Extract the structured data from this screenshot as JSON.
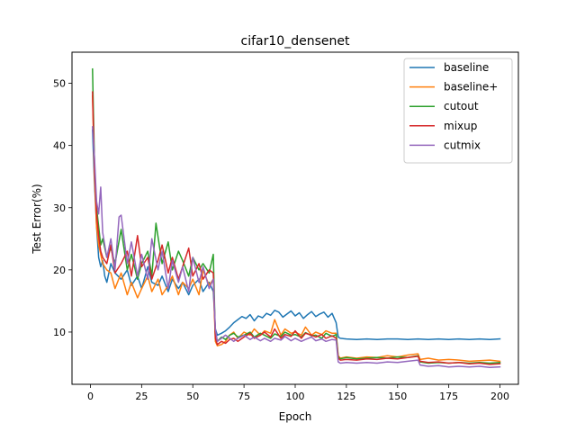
{
  "chart_data": {
    "type": "line",
    "title": "cifar10_densenet",
    "xlabel": "Epoch",
    "ylabel": "Test Error(%)",
    "xlim": [
      -9,
      209
    ],
    "ylim": [
      1.6,
      55.0
    ],
    "xticks": [
      0,
      25,
      50,
      75,
      100,
      125,
      150,
      175,
      200
    ],
    "yticks": [
      10,
      20,
      30,
      40,
      50
    ],
    "grid": false,
    "legend_position": "top-right",
    "series": [
      {
        "name": "baseline",
        "color": "#1f77b4",
        "x": [
          1,
          2,
          3,
          4,
          5,
          6,
          7,
          8,
          10,
          12,
          15,
          18,
          20,
          23,
          25,
          28,
          30,
          33,
          35,
          38,
          40,
          43,
          45,
          48,
          50,
          53,
          55,
          58,
          60,
          61,
          62,
          64,
          66,
          68,
          70,
          72,
          74,
          76,
          78,
          80,
          82,
          84,
          86,
          88,
          90,
          92,
          94,
          96,
          98,
          100,
          102,
          104,
          106,
          108,
          110,
          112,
          114,
          116,
          118,
          120,
          121,
          122,
          125,
          130,
          135,
          140,
          145,
          150,
          155,
          160,
          165,
          170,
          175,
          180,
          185,
          190,
          195,
          200
        ],
        "y": [
          42.5,
          34.0,
          27.0,
          22.0,
          20.5,
          21.5,
          19.0,
          18.0,
          21.0,
          19.5,
          18.5,
          20.0,
          17.5,
          19.0,
          17.0,
          20.5,
          18.0,
          17.5,
          19.0,
          16.5,
          18.5,
          17.0,
          18.0,
          16.0,
          17.5,
          18.5,
          16.5,
          18.0,
          16.5,
          10.5,
          9.5,
          9.8,
          10.2,
          10.8,
          11.5,
          12.0,
          12.5,
          12.2,
          12.8,
          11.8,
          12.6,
          12.3,
          13.0,
          12.7,
          13.5,
          13.2,
          12.4,
          12.9,
          13.4,
          12.6,
          13.1,
          12.2,
          12.8,
          13.3,
          12.5,
          12.9,
          13.2,
          12.4,
          13.0,
          11.5,
          9.2,
          9.0,
          8.9,
          8.8,
          8.9,
          8.8,
          8.9,
          8.9,
          8.8,
          8.9,
          8.8,
          8.9,
          8.8,
          8.9,
          8.8,
          8.9,
          8.8,
          8.9
        ]
      },
      {
        "name": "baseline+",
        "color": "#ff7f0e",
        "x": [
          1,
          2,
          3,
          4,
          5,
          6,
          8,
          10,
          12,
          15,
          18,
          20,
          23,
          25,
          28,
          30,
          33,
          35,
          38,
          40,
          43,
          45,
          48,
          50,
          53,
          55,
          58,
          60,
          61,
          62,
          64,
          66,
          68,
          70,
          72,
          75,
          78,
          80,
          83,
          85,
          88,
          90,
          93,
          95,
          98,
          100,
          103,
          105,
          108,
          110,
          113,
          115,
          118,
          120,
          121,
          122,
          125,
          130,
          135,
          140,
          145,
          150,
          155,
          160,
          161,
          165,
          170,
          175,
          180,
          185,
          190,
          195,
          200
        ],
        "y": [
          48.0,
          35.0,
          27.0,
          24.0,
          22.5,
          21.0,
          20.0,
          19.5,
          17.0,
          19.5,
          16.0,
          18.0,
          15.5,
          17.0,
          19.0,
          16.5,
          18.5,
          16.0,
          17.5,
          19.0,
          16.0,
          18.0,
          17.0,
          18.5,
          16.0,
          20.0,
          17.5,
          18.5,
          8.5,
          7.8,
          8.0,
          8.5,
          9.5,
          10.0,
          9.0,
          10.0,
          9.5,
          10.5,
          9.5,
          10.2,
          9.8,
          12.0,
          9.5,
          10.5,
          9.8,
          10.0,
          9.5,
          10.8,
          9.5,
          10.0,
          9.6,
          10.2,
          9.8,
          9.8,
          6.2,
          5.8,
          6.0,
          5.8,
          6.0,
          5.9,
          6.2,
          6.0,
          6.3,
          6.5,
          5.6,
          5.8,
          5.5,
          5.6,
          5.5,
          5.3,
          5.4,
          5.5,
          5.3
        ]
      },
      {
        "name": "cutout",
        "color": "#2ca02c",
        "x": [
          1,
          2,
          3,
          4,
          5,
          6,
          8,
          10,
          12,
          15,
          18,
          20,
          23,
          25,
          28,
          30,
          32,
          35,
          38,
          40,
          43,
          45,
          48,
          50,
          53,
          55,
          58,
          60,
          61,
          62,
          64,
          66,
          68,
          70,
          72,
          75,
          78,
          80,
          83,
          85,
          88,
          90,
          93,
          95,
          98,
          100,
          103,
          105,
          108,
          110,
          113,
          115,
          118,
          120,
          121,
          122,
          125,
          130,
          135,
          140,
          145,
          150,
          155,
          160,
          161,
          165,
          170,
          175,
          180,
          185,
          190,
          195,
          200
        ],
        "y": [
          52.3,
          37.0,
          30.0,
          27.0,
          24.0,
          25.0,
          22.0,
          23.5,
          21.0,
          26.5,
          20.0,
          22.5,
          18.5,
          21.0,
          23.0,
          19.0,
          27.5,
          21.0,
          24.5,
          20.0,
          23.0,
          21.5,
          19.0,
          22.0,
          20.0,
          21.0,
          19.5,
          22.5,
          9.0,
          8.5,
          9.2,
          8.8,
          9.5,
          9.8,
          9.2,
          9.5,
          10.0,
          9.2,
          9.8,
          9.5,
          9.0,
          9.7,
          9.3,
          10.0,
          9.5,
          9.6,
          9.2,
          9.9,
          9.4,
          9.5,
          9.0,
          9.8,
          9.3,
          9.6,
          6.0,
          5.7,
          5.9,
          5.7,
          5.8,
          5.9,
          5.8,
          6.0,
          5.9,
          6.2,
          5.2,
          5.0,
          5.1,
          5.0,
          5.1,
          5.0,
          5.1,
          5.0,
          5.1
        ]
      },
      {
        "name": "mixup",
        "color": "#d62728",
        "x": [
          1,
          2,
          3,
          4,
          5,
          6,
          8,
          10,
          12,
          15,
          18,
          20,
          23,
          25,
          28,
          30,
          33,
          35,
          38,
          40,
          43,
          45,
          48,
          50,
          53,
          55,
          58,
          60,
          61,
          62,
          64,
          66,
          68,
          70,
          72,
          75,
          78,
          80,
          83,
          85,
          88,
          90,
          93,
          95,
          98,
          100,
          103,
          105,
          108,
          110,
          113,
          115,
          118,
          120,
          121,
          122,
          125,
          130,
          135,
          140,
          145,
          150,
          155,
          160,
          161,
          165,
          170,
          175,
          180,
          185,
          190,
          195,
          200
        ],
        "y": [
          48.6,
          36.0,
          29.0,
          25.5,
          23.0,
          22.0,
          21.0,
          24.0,
          19.5,
          21.0,
          23.0,
          19.0,
          25.5,
          20.5,
          22.0,
          18.5,
          21.5,
          24.0,
          19.5,
          22.0,
          18.5,
          20.5,
          23.5,
          19.0,
          21.0,
          18.5,
          20.0,
          19.5,
          9.0,
          8.0,
          8.5,
          8.2,
          8.8,
          9.0,
          8.5,
          9.2,
          9.8,
          9.0,
          9.5,
          10.0,
          9.2,
          10.5,
          9.0,
          9.6,
          9.3,
          10.2,
          9.0,
          9.8,
          9.5,
          9.2,
          9.6,
          9.0,
          9.4,
          9.0,
          5.8,
          5.5,
          5.6,
          5.5,
          5.7,
          5.6,
          5.8,
          5.7,
          5.9,
          6.1,
          5.3,
          5.1,
          5.2,
          5.0,
          5.1,
          4.9,
          5.0,
          4.8,
          4.9
        ]
      },
      {
        "name": "cutmix",
        "color": "#9467bd",
        "x": [
          1,
          2,
          3,
          4,
          5,
          6,
          8,
          10,
          12,
          14,
          15,
          18,
          20,
          23,
          25,
          28,
          30,
          33,
          35,
          38,
          40,
          43,
          45,
          48,
          50,
          53,
          55,
          58,
          60,
          61,
          62,
          64,
          66,
          68,
          70,
          72,
          75,
          78,
          80,
          83,
          85,
          88,
          90,
          93,
          95,
          98,
          100,
          103,
          105,
          108,
          110,
          113,
          115,
          118,
          120,
          121,
          122,
          125,
          130,
          135,
          140,
          145,
          150,
          155,
          160,
          161,
          165,
          170,
          175,
          180,
          185,
          190,
          195,
          200
        ],
        "y": [
          43.0,
          38.0,
          31.0,
          29.0,
          33.3,
          26.0,
          22.0,
          25.0,
          20.0,
          28.5,
          28.8,
          21.0,
          24.5,
          19.0,
          22.5,
          18.5,
          25.0,
          20.0,
          23.0,
          17.0,
          21.5,
          18.0,
          20.5,
          16.5,
          22.0,
          18.0,
          20.5,
          17.0,
          18.5,
          10.5,
          8.5,
          9.0,
          9.5,
          9.0,
          8.5,
          9.0,
          9.5,
          8.8,
          9.2,
          8.6,
          9.0,
          8.5,
          9.0,
          8.7,
          9.3,
          8.6,
          9.0,
          8.5,
          8.8,
          9.2,
          8.6,
          8.9,
          8.5,
          8.8,
          8.7,
          5.2,
          5.0,
          5.1,
          5.0,
          5.1,
          5.0,
          5.2,
          5.1,
          5.3,
          5.5,
          4.7,
          4.5,
          4.6,
          4.4,
          4.5,
          4.4,
          4.5,
          4.3,
          4.4
        ]
      }
    ]
  }
}
